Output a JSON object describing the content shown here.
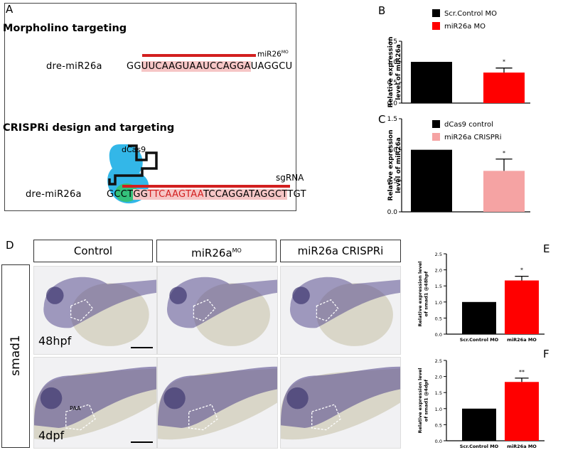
{
  "panelA": {
    "letter": "A",
    "morpholino_title": "Morpholino targeting",
    "mo_gene": "dre-miR26a",
    "mo_seq": {
      "pre": "GG",
      "hl": "UUCAAGUAAUCCAGGA",
      "post": "UAGGCU"
    },
    "mo_label": "miR26",
    "mo_label_sup": "MO",
    "crispri_title": "CRISPRi design and targeting",
    "dcas9": "dCas9",
    "sgrna": "sgRNA",
    "cr_gene": "dre-miR26a",
    "cr_seq": {
      "a": "GCCT",
      "b": "GG",
      "c": "TTCAAGTAA",
      "d": "TCCAGGATAGGCT",
      "e": "TGT"
    }
  },
  "panelD": {
    "letter": "D",
    "row_label": "smad1",
    "col_headers": {
      "c1": "Control",
      "c2": "miR26a",
      "c2_sup": "MO",
      "c3": "miR26a CRISPRi"
    },
    "stage_48": "48hpf",
    "stage_4": "4dpf",
    "paa": "PAA"
  },
  "colors": {
    "black_bar": "#000000",
    "red_bar": "#ff0000",
    "pink_bar": "#f5a3a3",
    "stain": "#5a4f8f",
    "seq_red": "#d21f1f"
  },
  "chart_data": [
    {
      "id": "B",
      "type": "bar",
      "letter": "B",
      "ylabel": "Relative expression level of miR26a",
      "ylim": [
        0,
        1.5
      ],
      "yticks": [
        "0.0",
        "0.5",
        "1.0",
        "1.5"
      ],
      "legend": [
        "Scr.Control MO",
        "miR26a MO"
      ],
      "values": [
        1.0,
        0.74
      ],
      "errors": [
        0,
        0.11
      ],
      "significance": [
        "",
        "*"
      ]
    },
    {
      "id": "C",
      "type": "bar",
      "letter": "C",
      "ylabel": "Relative expression level of miR26a",
      "ylim": [
        0,
        1.5
      ],
      "yticks": [
        "0.0",
        "0.5",
        "1.0",
        "1.5"
      ],
      "legend": [
        "dCas9 control",
        "miR26a CRISPRi"
      ],
      "values": [
        1.0,
        0.66
      ],
      "errors": [
        0,
        0.19
      ],
      "significance": [
        "",
        "*"
      ]
    },
    {
      "id": "E",
      "type": "bar",
      "letter": "E",
      "ylabel": "Relative expression level of smad1 @48hpf",
      "ylim": [
        0,
        2.5
      ],
      "yticks": [
        "0.0",
        "0.5",
        "1.0",
        "1.5",
        "2.0",
        "2.5"
      ],
      "categories": [
        "Scr.Control MO",
        "miR26a MO"
      ],
      "values": [
        1.0,
        1.67
      ],
      "errors": [
        0,
        0.13
      ],
      "significance": [
        "",
        "*"
      ]
    },
    {
      "id": "F",
      "type": "bar",
      "letter": "F",
      "ylabel": "Relative expression level of smad1 @4dpf",
      "ylim": [
        0,
        2.5
      ],
      "yticks": [
        "0.0",
        "0.5",
        "1.0",
        "1.5",
        "2.0",
        "2.5"
      ],
      "categories": [
        "Scr.Control MO",
        "miR26a MO"
      ],
      "values": [
        1.0,
        1.83
      ],
      "errors": [
        0,
        0.12
      ],
      "significance": [
        "",
        "**"
      ]
    }
  ]
}
